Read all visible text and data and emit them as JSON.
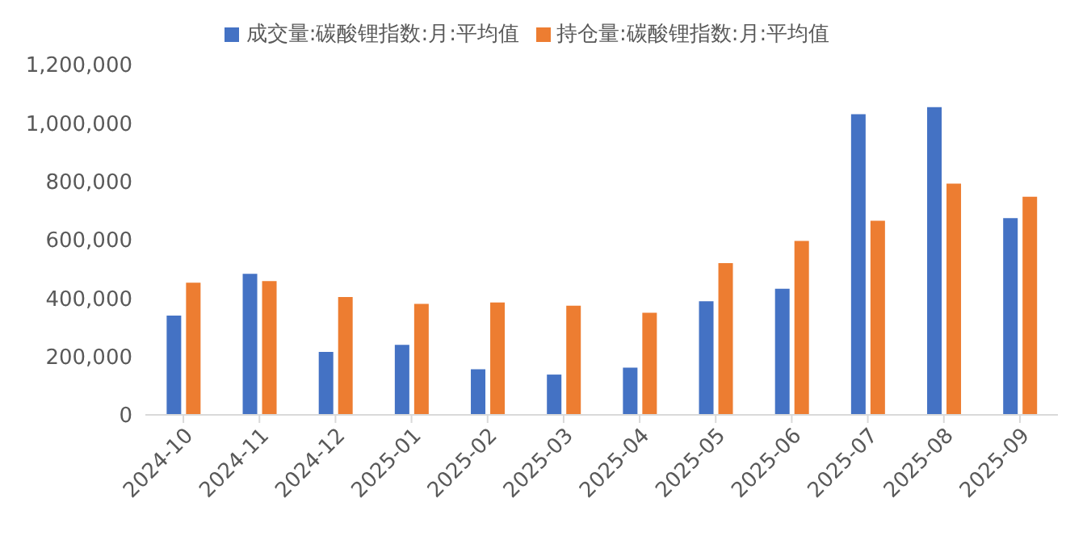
{
  "chart_data": {
    "type": "bar",
    "categories": [
      "2024-10",
      "2024-11",
      "2024-12",
      "2025-01",
      "2025-02",
      "2025-03",
      "2025-04",
      "2025-05",
      "2025-06",
      "2025-07",
      "2025-08",
      "2025-09"
    ],
    "series": [
      {
        "name": "成交量:碳酸锂指数:月:平均值",
        "color": "#4472c4",
        "values": [
          340000,
          483000,
          216000,
          240000,
          156000,
          138000,
          162000,
          389000,
          432000,
          1030000,
          1054000,
          674000
        ]
      },
      {
        "name": "持仓量:碳酸锂指数:月:平均值",
        "color": "#ed7d31",
        "values": [
          453000,
          458000,
          404000,
          380000,
          385000,
          374000,
          350000,
          520000,
          596000,
          665000,
          792000,
          747000
        ]
      }
    ],
    "ylim": [
      0,
      1200000
    ],
    "yticks": [
      0,
      {
        "value": 200000,
        "label": "200,000"
      },
      {
        "value": 400000,
        "label": "400,000"
      },
      {
        "value": 600000,
        "label": "600,000"
      },
      {
        "value": 800000,
        "label": "800,000"
      },
      {
        "value": 1000000,
        "label": "1,000,000"
      },
      {
        "value": 1200000,
        "label": "1,200,000"
      }
    ],
    "grid": false,
    "legend": "top"
  }
}
